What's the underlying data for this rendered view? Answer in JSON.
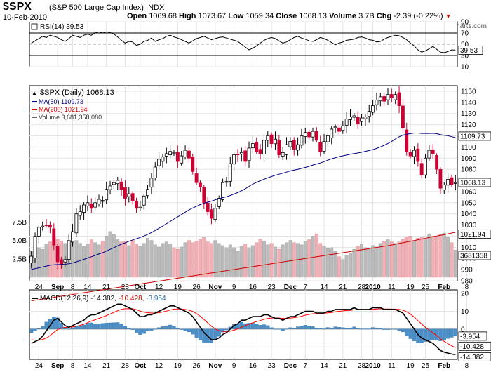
{
  "header": {
    "symbol": "$SPX",
    "name": "(S&P 500 Large Cap Index)",
    "exchange": "INDX",
    "date": "10-Feb-2010",
    "open_label": "Open",
    "open": "1069.68",
    "high_label": "High",
    "high": "1073.67",
    "low_label": "Low",
    "low": "1059.34",
    "close_label": "Close",
    "close": "1068.13",
    "volume_label": "Volume",
    "volume": "3.7B",
    "chg_label": "Chg",
    "chg": "-2.39 (-0.22%)",
    "copyright": "© StockCharts.com"
  },
  "colors": {
    "up": "#000000",
    "down": "#cc0033",
    "ma50": "#000080",
    "ma200": "#cc0000",
    "vol_up": "#bbbbbb",
    "vol_down": "#f0b0b8",
    "hist": "#4a8fc8",
    "signal": "#ff0000"
  },
  "chart_data": [
    {
      "type": "line",
      "panel": "rsi",
      "legend": "RSI(14) 39.53",
      "ylim": [
        10,
        90
      ],
      "y_ticks": [
        10,
        30,
        50,
        70,
        90
      ],
      "current_label": "39.53",
      "values": [
        52,
        56,
        60,
        64,
        62,
        66,
        64,
        62,
        58,
        55,
        60,
        66,
        64,
        62,
        66,
        68,
        66,
        70,
        72,
        70,
        72,
        71,
        68,
        63,
        57,
        52,
        55,
        54,
        48,
        50,
        55,
        57,
        61,
        55,
        58,
        60,
        64,
        66,
        63,
        61,
        58,
        55,
        52,
        56,
        60,
        62,
        64,
        61,
        58,
        60,
        62,
        63,
        61,
        59,
        57,
        55,
        50,
        45,
        40,
        43,
        47,
        52,
        57,
        60,
        62,
        60,
        56,
        52,
        54,
        58,
        62,
        64,
        61,
        59,
        56,
        55,
        58,
        62,
        60,
        57,
        53,
        49,
        52,
        54,
        57,
        58,
        59,
        62,
        63,
        61,
        58,
        57,
        54,
        55,
        59,
        62,
        64,
        66,
        65,
        62,
        58,
        52,
        47,
        40,
        36,
        38,
        42,
        46,
        41,
        36,
        35,
        37,
        40,
        39.5
      ]
    },
    {
      "type": "candlestick",
      "panel": "price",
      "title": "$SPX (Daily) 1068.13",
      "ylim": [
        980,
        1155
      ],
      "y_ticks": [
        980,
        990,
        1000,
        1010,
        1020,
        1030,
        1040,
        1050,
        1060,
        1070,
        1080,
        1090,
        1100,
        1110,
        1120,
        1130,
        1140,
        1150
      ],
      "series": [
        {
          "name": "MA(50) 1109.73",
          "label": "1109.73"
        },
        {
          "name": "MA(200) 1021.94",
          "label": "1021.94"
        },
        {
          "name": "Volume 3,681,358,080",
          "label": "3681358"
        }
      ],
      "close_label": "1068.13",
      "volume_ticks": [
        {
          "label": "2.5B",
          "value": 2.5
        },
        {
          "label": "5.0B",
          "value": 5.0
        },
        {
          "label": "7.5B",
          "value": 7.5
        }
      ],
      "closes": [
        1002,
        1020,
        1028,
        1029,
        1030,
        1028,
        1012,
        997,
        995,
        999,
        1016,
        1024,
        1040,
        1042,
        1048,
        1050,
        1045,
        1050,
        1053,
        1052,
        1062,
        1065,
        1068,
        1070,
        1062,
        1054,
        1058,
        1052,
        1045,
        1046,
        1056,
        1062,
        1072,
        1082,
        1089,
        1091,
        1094,
        1096,
        1095,
        1087,
        1092,
        1097,
        1090,
        1078,
        1068,
        1064,
        1050,
        1042,
        1036,
        1045,
        1054,
        1068,
        1069,
        1085,
        1093,
        1093,
        1095,
        1087,
        1099,
        1103,
        1096,
        1094,
        1106,
        1110,
        1103,
        1107,
        1093,
        1095,
        1102,
        1105,
        1098,
        1102,
        1110,
        1113,
        1109,
        1114,
        1106,
        1096,
        1105,
        1110,
        1116,
        1118,
        1114,
        1119,
        1125,
        1127,
        1128,
        1121,
        1126,
        1127,
        1132,
        1137,
        1142,
        1145,
        1141,
        1147,
        1144,
        1147,
        1137,
        1117,
        1096,
        1092,
        1097,
        1087,
        1075,
        1090,
        1097,
        1094,
        1080,
        1063,
        1066,
        1071,
        1066,
        1068
      ],
      "volumes": [
        3.5,
        4.2,
        4.0,
        3.8,
        4.5,
        4.8,
        5.5,
        5.2,
        4.9,
        4.6,
        4.4,
        4.8,
        5.0,
        4.6,
        4.2,
        4.5,
        5.1,
        4.7,
        4.4,
        4.9,
        5.6,
        6.2,
        5.8,
        5.2,
        4.8,
        4.9,
        4.3,
        5.0,
        4.5,
        4.2,
        4.6,
        5.3,
        5.0,
        4.4,
        4.1,
        4.6,
        4.8,
        4.5,
        4.0,
        3.8,
        4.1,
        4.7,
        5.0,
        4.7,
        4.9,
        5.2,
        5.4,
        4.8,
        4.6,
        5.0,
        4.6,
        4.3,
        4.0,
        4.4,
        4.0,
        3.6,
        4.2,
        4.5,
        4.0,
        4.3,
        4.7,
        5.2,
        4.9,
        4.4,
        4.6,
        4.1,
        3.8,
        4.4,
        4.7,
        5.0,
        4.7,
        4.6,
        4.4,
        4.9,
        5.1,
        5.6,
        5.9,
        4.6,
        4.2,
        3.9,
        4.0,
        3.6,
        2.8,
        2.4,
        3.0,
        3.3,
        3.8,
        4.2,
        4.5,
        4.0,
        3.8,
        4.3,
        4.1,
        4.6,
        4.9,
        5.1,
        4.8,
        4.6,
        4.8,
        5.2,
        5.4,
        5.6,
        5.0,
        5.3,
        5.5,
        5.2,
        5.9,
        5.6,
        5.4,
        5.8,
        6.0,
        5.4,
        4.7,
        3.7
      ]
    },
    {
      "type": "line",
      "panel": "macd",
      "legend": "MACD(12,26,9) -14.382, -10.428, -3.954",
      "ylim": [
        -17,
        22
      ],
      "y_ticks": [
        -10,
        0,
        10,
        20
      ],
      "macd_label": "-14.382",
      "signal_label": "-10.428",
      "hist_label": "-3.954",
      "macd": [
        -8,
        -7,
        -6,
        -4,
        -1,
        2,
        5,
        6,
        4,
        2,
        1,
        2,
        3,
        4,
        5,
        7,
        8,
        8,
        9,
        10,
        11,
        12,
        13,
        14,
        14,
        13,
        12,
        11,
        9,
        7,
        7,
        8,
        8,
        9,
        10,
        11,
        12,
        13,
        13,
        12,
        11,
        10,
        9,
        7,
        4,
        1,
        -2,
        -4,
        -6,
        -6,
        -5,
        -3,
        -2,
        0,
        2,
        3,
        5,
        5,
        6,
        7,
        7,
        7,
        8,
        8,
        7,
        6,
        6,
        5,
        6,
        7,
        7,
        8,
        9,
        10,
        10,
        10,
        9,
        9,
        9,
        10,
        10,
        11,
        11,
        11,
        11,
        11,
        12,
        11,
        11,
        11,
        11,
        12,
        12,
        12,
        11,
        11,
        11,
        11,
        10,
        9,
        6,
        3,
        0,
        -3,
        -5,
        -6,
        -7,
        -8,
        -10,
        -12,
        -13,
        -13.5,
        -14,
        -14.382
      ],
      "signal": [
        -6,
        -6.2,
        -6.2,
        -5.8,
        -5,
        -3.6,
        -1.9,
        -0.3,
        0.6,
        0.9,
        1,
        1.2,
        1.6,
        2.1,
        2.7,
        3.6,
        4.5,
        5.2,
        6,
        6.8,
        7.6,
        8.5,
        9.4,
        10.3,
        11,
        11.4,
        11.5,
        11.4,
        10.9,
        10.1,
        9.5,
        9.2,
        9,
        9,
        9.2,
        9.6,
        10.1,
        10.7,
        11.2,
        11.3,
        11.3,
        11,
        10.6,
        9.9,
        8.7,
        7.2,
        5.4,
        3.5,
        1.6,
        0.1,
        -0.9,
        -1.3,
        -1.5,
        -1.2,
        -0.6,
        0.1,
        1.1,
        1.9,
        2.7,
        3.6,
        4.2,
        4.8,
        5.5,
        6,
        6.2,
        6.2,
        6.2,
        6,
        6,
        6.2,
        6.4,
        6.7,
        7.2,
        7.8,
        8.2,
        8.6,
        8.7,
        8.8,
        8.9,
        9.1,
        9.3,
        9.7,
        10,
        10.2,
        10.4,
        10.5,
        10.8,
        10.8,
        10.9,
        10.9,
        10.9,
        11.1,
        11.3,
        11.4,
        11.3,
        11.3,
        11.2,
        11.2,
        11,
        10.6,
        9.7,
        8.4,
        6.7,
        4.8,
        2.8,
        1,
        -0.6,
        -2.1,
        -3.7,
        -5.4,
        -6.9,
        -8.2,
        -9.4,
        -10.428
      ]
    }
  ],
  "x_axis": {
    "ticks": [
      {
        "label": "24",
        "i": 2
      },
      {
        "label": "Sep",
        "i": 7,
        "bold": true
      },
      {
        "label": "8",
        "i": 11
      },
      {
        "label": "14",
        "i": 15
      },
      {
        "label": "21",
        "i": 20
      },
      {
        "label": "28",
        "i": 25
      },
      {
        "label": "Oct",
        "i": 29,
        "bold": true
      },
      {
        "label": "12",
        "i": 34
      },
      {
        "label": "19",
        "i": 39
      },
      {
        "label": "26",
        "i": 44
      },
      {
        "label": "Nov",
        "i": 49,
        "bold": true
      },
      {
        "label": "9",
        "i": 54
      },
      {
        "label": "16",
        "i": 59
      },
      {
        "label": "23",
        "i": 64
      },
      {
        "label": "Dec",
        "i": 69,
        "bold": true
      },
      {
        "label": "7",
        "i": 73
      },
      {
        "label": "14",
        "i": 78
      },
      {
        "label": "21",
        "i": 83
      },
      {
        "label": "28",
        "i": 88
      },
      {
        "label": "2010",
        "i": 91,
        "bold": true
      },
      {
        "label": "11",
        "i": 96
      },
      {
        "label": "19",
        "i": 101
      },
      {
        "label": "25",
        "i": 105
      },
      {
        "label": "Feb",
        "i": 110,
        "bold": true
      },
      {
        "label": "8",
        "i": 116
      }
    ]
  }
}
